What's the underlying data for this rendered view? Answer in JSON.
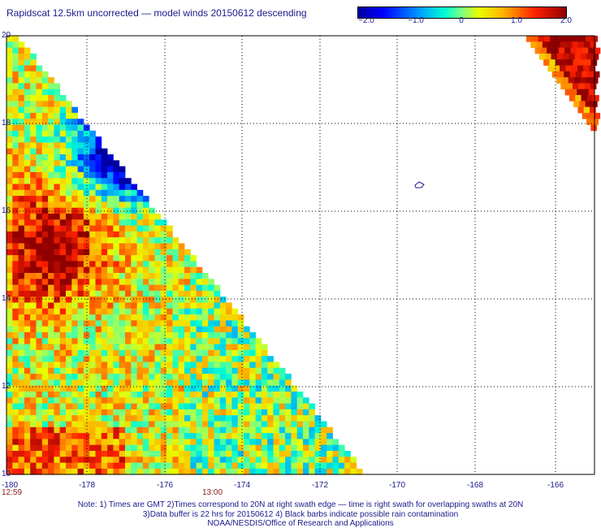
{
  "title": "Rapidscat 12.5km uncorrected — model winds 20150612 descending",
  "colorbar": {
    "labels": [
      "−2.0",
      "−1.0",
      "0",
      "1.0",
      "2.0"
    ],
    "min": -2.0,
    "max": 2.0
  },
  "axes": {
    "x_ticks": [
      "-180",
      "-178",
      "-176",
      "-174",
      "-172",
      "-170",
      "-168",
      "-166"
    ],
    "y_ticks": [
      "20",
      "18",
      "16",
      "14",
      "12",
      "10"
    ],
    "xlim": [
      -180,
      -165
    ],
    "ylim": [
      10,
      20
    ]
  },
  "times": {
    "left": "12:59",
    "center": "13:00"
  },
  "notes": {
    "line1": "Note: 1) Times are GMT 2)Times correspond to 20N at right swath edge — time is right swath for overlapping swaths at 20N",
    "line2": "3)Data buffer is 22 hrs for 20150612 4) Black barbs indicate possible rain contamination",
    "line3": "NOAA/NESDIS/Office of Research and Applications"
  },
  "island_marker": "island-outline",
  "colors": {
    "text": "#1a1a8a",
    "time": "#8b1a1a",
    "grid": "#000000"
  }
}
